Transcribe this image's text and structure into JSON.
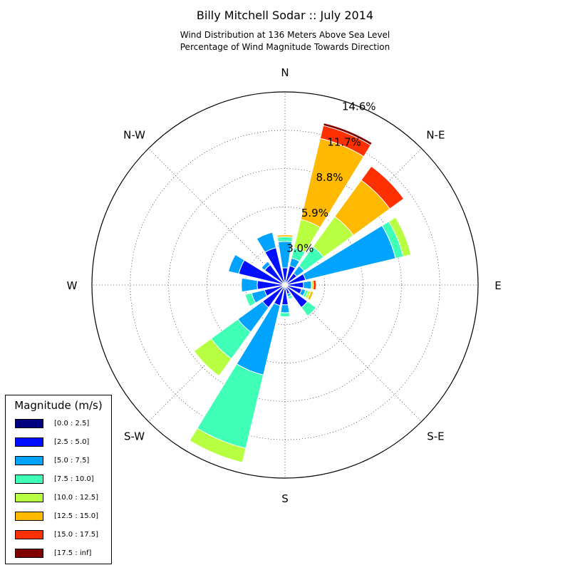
{
  "title": "Billy Mitchell Sodar :: July 2014",
  "subtitle_line1": "Wind Distribution at 136 Meters Above Sea Level",
  "subtitle_line2": "Percentage of Wind Magnitude Towards Direction",
  "chart_data": {
    "type": "windrose",
    "directions": [
      "N",
      "NNE",
      "NE",
      "ENE",
      "E",
      "ESE",
      "SE",
      "SSE",
      "S",
      "SSW",
      "SW",
      "WSW",
      "W",
      "WNW",
      "NW",
      "NNW"
    ],
    "direction_labels": [
      "N",
      "N-E",
      "E",
      "S-E",
      "S",
      "S-W",
      "W",
      "N-W"
    ],
    "radial_ticks": [
      3.0,
      5.9,
      8.8,
      11.7,
      14.6
    ],
    "radial_tick_labels": [
      "3.0%",
      "5.9%",
      "8.8%",
      "11.7%",
      "14.6%"
    ],
    "rmax": 14.6,
    "legend_title": "Magnitude (m/s)",
    "bins": [
      {
        "label": "[0.0 : 2.5]",
        "color": "#000080"
      },
      {
        "label": "[2.5 : 5.0]",
        "color": "#0010ff"
      },
      {
        "label": "[5.0 : 7.5]",
        "color": "#00a4ff"
      },
      {
        "label": "[7.5 : 10.0]",
        "color": "#40ffb7"
      },
      {
        "label": "[10.0 : 12.5]",
        "color": "#b7ff40"
      },
      {
        "label": "[12.5 : 15.0]",
        "color": "#ffb900"
      },
      {
        "label": "[15.0 : 17.5]",
        "color": "#ff3000"
      },
      {
        "label": "[17.5 : inf]",
        "color": "#800000"
      }
    ],
    "values": [
      [
        0.1,
        1.2,
        2.0,
        0.35,
        0.0,
        0.15,
        0.0,
        0.0
      ],
      [
        0.1,
        1.4,
        0.6,
        0.8,
        2.2,
        6.3,
        1.0,
        0.2
      ],
      [
        0.1,
        1.0,
        0.7,
        1.8,
        2.8,
        3.4,
        1.3,
        0.0
      ],
      [
        0.1,
        1.5,
        7.0,
        0.6,
        0.6,
        0.0,
        0.0,
        0.0
      ],
      [
        0.1,
        1.3,
        0.6,
        0.0,
        0.15,
        0.0,
        0.2,
        0.0
      ],
      [
        0.1,
        1.2,
        0.3,
        0.2,
        0.2,
        0.2,
        0.0,
        0.0
      ],
      [
        0.1,
        2.0,
        0.0,
        0.8,
        0.0,
        0.0,
        0.0,
        0.0
      ],
      [
        0.1,
        0.6,
        0.2,
        0.2,
        0.0,
        0.0,
        0.0,
        0.0
      ],
      [
        0.1,
        1.4,
        0.6,
        0.3,
        0.0,
        0.0,
        0.0,
        0.0
      ],
      [
        0.1,
        1.5,
        5.4,
        5.7,
        1.1,
        0.0,
        0.0,
        0.0
      ],
      [
        0.1,
        2.0,
        2.3,
        2.5,
        1.6,
        0.0,
        0.0,
        0.0
      ],
      [
        0.1,
        1.5,
        1.0,
        0.5,
        0.0,
        0.0,
        0.0,
        0.0
      ],
      [
        0.1,
        2.0,
        1.2,
        0.0,
        0.0,
        0.0,
        0.0,
        0.0
      ],
      [
        0.1,
        3.5,
        0.8,
        0.0,
        0.0,
        0.0,
        0.0,
        0.0
      ],
      [
        0.1,
        1.8,
        0.3,
        0.0,
        0.0,
        0.0,
        0.0,
        0.0
      ],
      [
        0.1,
        2.8,
        1.2,
        0.0,
        0.0,
        0.0,
        0.0,
        0.0
      ]
    ]
  }
}
